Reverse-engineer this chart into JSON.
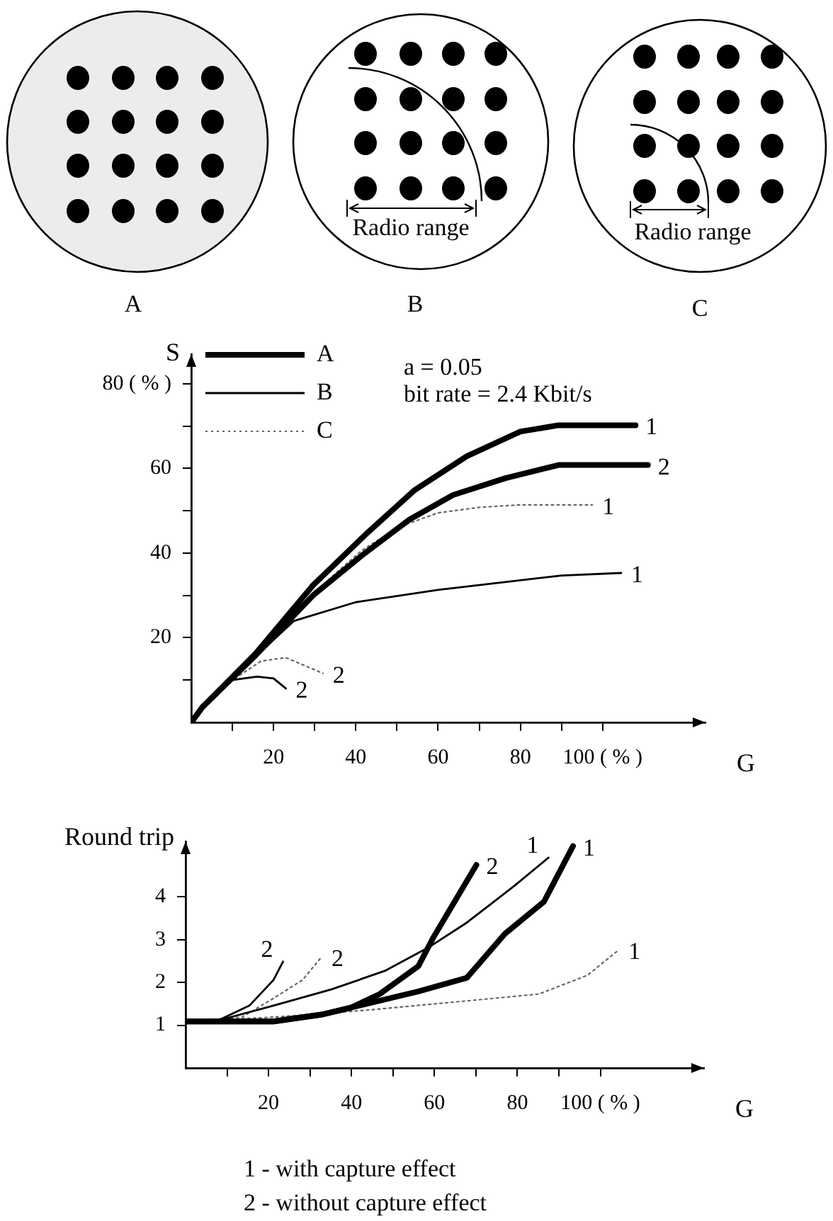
{
  "chart_data": [
    {
      "type": "other",
      "categories": [
        "A",
        "B",
        "C"
      ],
      "annotations": [
        "Radio range",
        "Radio range"
      ]
    },
    {
      "type": "line",
      "ylabel": "S",
      "xlabel": "G",
      "legend": "top left",
      "grid": false,
      "marker": "none",
      "annotations": [
        "a = 0.05",
        "bit rate = 2.4 Kbit/s",
        {
          "text": "1",
          "x": 108,
          "y": 70.2
        },
        {
          "text": "2",
          "x": 111,
          "y": 60.8
        },
        {
          "text": "1",
          "x": 104.5,
          "y": 35.3
        },
        {
          "text": "2",
          "x": 23,
          "y": 8
        },
        {
          "text": "1",
          "x": 97.5,
          "y": 51.4
        },
        {
          "text": "2",
          "x": 32,
          "y": 11.6
        }
      ],
      "xlim": [
        0,
        125
      ],
      "ylim": [
        0,
        87
      ],
      "xticks": [
        {
          "value": 10,
          "label": null
        },
        20,
        {
          "value": 30,
          "label": null
        },
        40,
        {
          "value": 50,
          "label": null
        },
        60,
        {
          "value": 70,
          "label": null
        },
        80,
        {
          "value": 90,
          "label": null
        },
        {
          "value": 100,
          "label": "100 ( % )"
        }
      ],
      "yticks": [
        {
          "value": 10,
          "label": null
        },
        20,
        {
          "value": 30,
          "label": null
        },
        40,
        {
          "value": 50,
          "label": null
        },
        60,
        {
          "value": 70,
          "label": null
        },
        {
          "value": 80,
          "label": "80 ( % )"
        }
      ],
      "series": [
        {
          "name": "A",
          "color": "#000000",
          "line_style": "solid",
          "x": [
            0,
            2.7,
            15.6,
            29.6,
            42.5,
            54.2,
            67,
            80,
            89.3,
            108
          ],
          "values": [
            0,
            3.6,
            16.2,
            32.4,
            44.5,
            54.8,
            62.9,
            68.7,
            70.2,
            70.2
          ]
        },
        {
          "color": "#000000",
          "line_style": "solid",
          "x": [
            0,
            2.7,
            15.6,
            29.6,
            41.3,
            53,
            63.6,
            76.4,
            89.3,
            111
          ],
          "values": [
            0,
            3.6,
            15.8,
            30,
            39.3,
            47.9,
            53.7,
            57.7,
            60.8,
            60.8
          ]
        },
        {
          "name": "B",
          "color": "#000000",
          "line_style": "solid",
          "x": [
            0,
            2.7,
            15.6,
            25,
            40,
            60,
            90,
            104.5
          ],
          "values": [
            0,
            3.6,
            15.5,
            24,
            28.4,
            31.3,
            34.7,
            35.3
          ]
        },
        {
          "color": "#000000",
          "line_style": "solid",
          "x": [
            0,
            5,
            10,
            16,
            20,
            23
          ],
          "values": [
            0,
            5.5,
            10,
            10.8,
            10.4,
            8
          ]
        },
        {
          "name": "C",
          "color": "#666666",
          "line_style": "dotted",
          "x": [
            0,
            2.7,
            15.6,
            29.6,
            41.3,
            50,
            60,
            70,
            80,
            97.5
          ],
          "values": [
            0,
            3.6,
            15.8,
            30.5,
            40.5,
            46,
            49.5,
            50.8,
            51.4,
            51.4
          ]
        },
        {
          "color": "#666666",
          "line_style": "dotted",
          "x": [
            0,
            5,
            10,
            17,
            23,
            32
          ],
          "values": [
            0,
            5.5,
            10,
            14.5,
            15.3,
            11.6
          ]
        }
      ]
    },
    {
      "type": "line",
      "ylabel": "Round trip",
      "xlabel": "G",
      "grid": false,
      "legend": false,
      "marker": "none",
      "annotations": [
        "1 - with capture effect",
        "2 - without capture effect",
        {
          "text": "1",
          "x": 93.4,
          "y": 5.19
        },
        {
          "text": "2",
          "x": 70.1,
          "y": 4.75
        },
        {
          "text": "1",
          "x": 87.5,
          "y": 4.92
        },
        {
          "text": "2",
          "x": 23.5,
          "y": 2.49
        },
        {
          "text": "1",
          "x": 104.4,
          "y": 2.76
        },
        {
          "text": "2",
          "x": 32.8,
          "y": 2.6
        }
      ],
      "xlim": [
        0,
        125
      ],
      "ylim": [
        0,
        5.3
      ],
      "xticks": [
        {
          "value": 10,
          "label": null
        },
        20,
        {
          "value": 30,
          "label": null
        },
        40,
        {
          "value": 50,
          "label": null
        },
        60,
        {
          "value": 70,
          "label": null
        },
        80,
        {
          "value": 90,
          "label": null
        },
        {
          "value": 100,
          "label": "100 ( % )"
        }
      ],
      "yticks": [
        1,
        2,
        3,
        4
      ],
      "series": [
        {
          "color": "#000000",
          "line_style": "solid",
          "x": [
            0,
            21.2,
            32.8,
            44.5,
            56.1,
            67.8,
            77,
            86.4,
            93.4
          ],
          "values": [
            1.09,
            1.09,
            1.25,
            1.52,
            1.79,
            2.11,
            3.14,
            3.89,
            5.19
          ]
        },
        {
          "color": "#000000",
          "line_style": "solid",
          "x": [
            0,
            21.2,
            32.8,
            39.8,
            46.8,
            56.1,
            59.6,
            70.1
          ],
          "values": [
            1.09,
            1.09,
            1.25,
            1.41,
            1.73,
            2.38,
            3.03,
            4.75
          ]
        },
        {
          "color": "#000000",
          "line_style": "solid",
          "x": [
            0,
            7.8,
            21.2,
            35.2,
            48,
            58.4,
            67.8,
            79.4,
            87.5
          ],
          "values": [
            1.09,
            1.11,
            1.46,
            1.84,
            2.27,
            2.81,
            3.4,
            4.27,
            4.92
          ]
        },
        {
          "color": "#000000",
          "line_style": "solid",
          "x": [
            0,
            7.8,
            15.4,
            21.2,
            23.5
          ],
          "values": [
            1.09,
            1.11,
            1.46,
            2.06,
            2.49
          ]
        },
        {
          "color": "#666666",
          "line_style": "dotted",
          "x": [
            0,
            21.2,
            44.5,
            67.8,
            85.2,
            96.9,
            104.4
          ],
          "values": [
            1.09,
            1.19,
            1.36,
            1.57,
            1.73,
            2.17,
            2.76
          ]
        },
        {
          "color": "#666666",
          "line_style": "dotted",
          "x": [
            0,
            13.6,
            21.2,
            28.2,
            32.8
          ],
          "values": [
            1.09,
            1.19,
            1.63,
            2.06,
            2.6
          ]
        }
      ]
    }
  ]
}
